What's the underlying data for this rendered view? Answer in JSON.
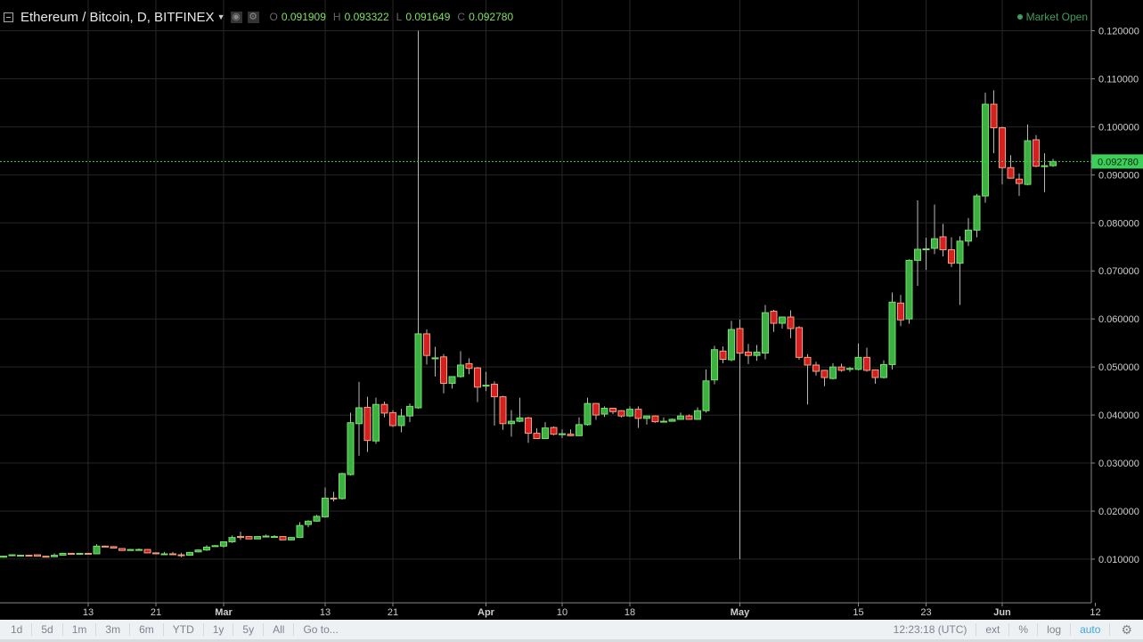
{
  "header": {
    "symbol": "Ethereum / Bitcoin, D, BITFINEX",
    "ohlc": [
      {
        "k": "O",
        "v": "0.091909"
      },
      {
        "k": "H",
        "v": "0.093322"
      },
      {
        "k": "L",
        "v": "0.091649"
      },
      {
        "k": "C",
        "v": "0.092780"
      }
    ],
    "market_status": "Market Open"
  },
  "toolbar": {
    "ranges": [
      "1d",
      "5d",
      "1m",
      "3m",
      "6m",
      "YTD",
      "1y",
      "5y",
      "All"
    ],
    "goto": "Go to...",
    "time": "12:23:18 (UTC)",
    "ext": "ext",
    "percent": "%",
    "log": "log",
    "auto": "auto"
  },
  "colors": {
    "background": "#000000",
    "up": "#3cb043",
    "up_border": "#74e067",
    "down": "#d42020",
    "down_border": "#f5a07a",
    "wick": "#b8b8b8",
    "grid": "#262626",
    "last_price": "#3cd05a"
  },
  "chart_data": {
    "type": "candlestick",
    "interval": "D",
    "last_price": "0.092780",
    "ylim": [
      0.0009,
      0.1264
    ],
    "grid": true,
    "y_ticks": [
      "0.010000",
      "0.020000",
      "0.030000",
      "0.040000",
      "0.050000",
      "0.060000",
      "0.070000",
      "0.080000",
      "0.090000",
      "0.100000",
      "0.110000",
      "0.120000"
    ],
    "x_ticks": [
      {
        "label": "13",
        "date": "Feb 13",
        "major": false
      },
      {
        "label": "21",
        "date": "Feb 21",
        "major": false
      },
      {
        "label": "Mar",
        "date": "Mar 1",
        "major": true
      },
      {
        "label": "13",
        "date": "Mar 13",
        "major": false
      },
      {
        "label": "21",
        "date": "Mar 21",
        "major": false
      },
      {
        "label": "Apr",
        "date": "Apr 1",
        "major": true
      },
      {
        "label": "10",
        "date": "Apr 10",
        "major": false
      },
      {
        "label": "18",
        "date": "Apr 18",
        "major": false
      },
      {
        "label": "May",
        "date": "May 1",
        "major": true
      },
      {
        "label": "15",
        "date": "May 15",
        "major": false
      },
      {
        "label": "23",
        "date": "May 23",
        "major": false
      },
      {
        "label": "Jun",
        "date": "Jun 1",
        "major": true
      },
      {
        "label": "12",
        "date": "Jun 12",
        "major": false
      }
    ],
    "columns": [
      "date",
      "open",
      "high",
      "low",
      "close"
    ],
    "candles": [
      [
        "Feb 3",
        0.0104,
        0.0107,
        0.0103,
        0.0106
      ],
      [
        "Feb 4",
        0.0107,
        0.011,
        0.0106,
        0.0109
      ],
      [
        "Feb 5",
        0.0108,
        0.0109,
        0.0107,
        0.0108
      ],
      [
        "Feb 6",
        0.0108,
        0.0109,
        0.0107,
        0.0107
      ],
      [
        "Feb 7",
        0.0109,
        0.0109,
        0.0106,
        0.0106
      ],
      [
        "Feb 8",
        0.0106,
        0.0106,
        0.0104,
        0.0104
      ],
      [
        "Feb 9",
        0.0105,
        0.0112,
        0.0105,
        0.0108
      ],
      [
        "Feb 10",
        0.0108,
        0.0113,
        0.0108,
        0.0112
      ],
      [
        "Feb 11",
        0.0112,
        0.0113,
        0.011,
        0.011
      ],
      [
        "Feb 12",
        0.011,
        0.0112,
        0.011,
        0.0112
      ],
      [
        "Feb 13",
        0.0112,
        0.0113,
        0.0111,
        0.0111
      ],
      [
        "Feb 14",
        0.0111,
        0.0131,
        0.0111,
        0.0127
      ],
      [
        "Feb 15",
        0.0127,
        0.0128,
        0.0125,
        0.0126
      ],
      [
        "Feb 16",
        0.0126,
        0.0127,
        0.0122,
        0.0123
      ],
      [
        "Feb 17",
        0.0122,
        0.0122,
        0.0118,
        0.0118
      ],
      [
        "Feb 18",
        0.0118,
        0.0121,
        0.0118,
        0.012
      ],
      [
        "Feb 19",
        0.012,
        0.0122,
        0.0119,
        0.012
      ],
      [
        "Feb 20",
        0.012,
        0.0121,
        0.0112,
        0.0113
      ],
      [
        "Feb 21",
        0.0113,
        0.0114,
        0.011,
        0.0111
      ],
      [
        "Feb 22",
        0.0111,
        0.0115,
        0.011,
        0.0111
      ],
      [
        "Feb 23",
        0.0111,
        0.0115,
        0.011,
        0.011
      ],
      [
        "Feb 24",
        0.0109,
        0.0113,
        0.0104,
        0.0108
      ],
      [
        "Feb 25",
        0.0108,
        0.0115,
        0.0108,
        0.0114
      ],
      [
        "Feb 26",
        0.0115,
        0.012,
        0.0115,
        0.0119
      ],
      [
        "Feb 27",
        0.0119,
        0.0129,
        0.0117,
        0.0125
      ],
      [
        "Feb 28",
        0.0126,
        0.0129,
        0.0126,
        0.0128
      ],
      [
        "Mar 1",
        0.0127,
        0.0136,
        0.0124,
        0.0136
      ],
      [
        "Mar 2",
        0.0136,
        0.0149,
        0.0134,
        0.0145
      ],
      [
        "Mar 3",
        0.0147,
        0.0157,
        0.014,
        0.0145
      ],
      [
        "Mar 4",
        0.0147,
        0.0147,
        0.0142,
        0.0142
      ],
      [
        "Mar 5",
        0.0142,
        0.0148,
        0.0142,
        0.0147
      ],
      [
        "Mar 6",
        0.0146,
        0.0151,
        0.0146,
        0.0148
      ],
      [
        "Mar 7",
        0.0147,
        0.015,
        0.0145,
        0.0147
      ],
      [
        "Mar 8",
        0.0147,
        0.0148,
        0.014,
        0.014
      ],
      [
        "Mar 9",
        0.014,
        0.0146,
        0.0139,
        0.0145
      ],
      [
        "Mar 10",
        0.0145,
        0.0177,
        0.0144,
        0.017
      ],
      [
        "Mar 11",
        0.0172,
        0.0181,
        0.0166,
        0.0179
      ],
      [
        "Mar 12",
        0.0179,
        0.0192,
        0.0178,
        0.0189
      ],
      [
        "Mar 13",
        0.0188,
        0.0249,
        0.0186,
        0.0227
      ],
      [
        "Mar 14",
        0.0227,
        0.024,
        0.022,
        0.0226
      ],
      [
        "Mar 15",
        0.0226,
        0.028,
        0.0224,
        0.0278
      ],
      [
        "Mar 16",
        0.0276,
        0.0405,
        0.0274,
        0.0384
      ],
      [
        "Mar 17",
        0.0382,
        0.0469,
        0.0315,
        0.0415
      ],
      [
        "Mar 18",
        0.0416,
        0.0438,
        0.0323,
        0.0347
      ],
      [
        "Mar 19",
        0.0346,
        0.0436,
        0.034,
        0.0422
      ],
      [
        "Mar 20",
        0.0422,
        0.0428,
        0.0395,
        0.0404
      ],
      [
        "Mar 21",
        0.0405,
        0.041,
        0.0375,
        0.0378
      ],
      [
        "Mar 22",
        0.0378,
        0.0413,
        0.0364,
        0.0398
      ],
      [
        "Mar 23",
        0.0398,
        0.0424,
        0.0385,
        0.0418
      ],
      [
        "Mar 24",
        0.0415,
        0.12,
        0.0413,
        0.0569
      ],
      [
        "Mar 25",
        0.0569,
        0.0578,
        0.0505,
        0.0524
      ],
      [
        "Mar 26",
        0.0517,
        0.0542,
        0.048,
        0.0519
      ],
      [
        "Mar 27",
        0.0521,
        0.0527,
        0.0445,
        0.0466
      ],
      [
        "Mar 28",
        0.0466,
        0.048,
        0.0455,
        0.048
      ],
      [
        "Mar 29",
        0.048,
        0.0533,
        0.0478,
        0.0504
      ],
      [
        "Mar 30",
        0.0507,
        0.0518,
        0.0485,
        0.0497
      ],
      [
        "Mar 31",
        0.0498,
        0.05,
        0.0427,
        0.0458
      ],
      [
        "Apr 1",
        0.0461,
        0.049,
        0.045,
        0.0462
      ],
      [
        "Apr 2",
        0.0464,
        0.047,
        0.0378,
        0.0438
      ],
      [
        "Apr 3",
        0.0438,
        0.044,
        0.0369,
        0.0382
      ],
      [
        "Apr 4",
        0.0382,
        0.041,
        0.0355,
        0.0387
      ],
      [
        "Apr 5",
        0.0387,
        0.0436,
        0.0385,
        0.0394
      ],
      [
        "Apr 6",
        0.0394,
        0.0396,
        0.0342,
        0.0362
      ],
      [
        "Apr 7",
        0.0362,
        0.0372,
        0.035,
        0.0351
      ],
      [
        "Apr 8",
        0.0351,
        0.0385,
        0.035,
        0.0373
      ],
      [
        "Apr 9",
        0.0374,
        0.0376,
        0.0358,
        0.036
      ],
      [
        "Apr 10",
        0.036,
        0.037,
        0.0352,
        0.0361
      ],
      [
        "Apr 11",
        0.036,
        0.037,
        0.0356,
        0.0357
      ],
      [
        "Apr 12",
        0.0357,
        0.0395,
        0.0356,
        0.038
      ],
      [
        "Apr 13",
        0.038,
        0.0436,
        0.0378,
        0.0424
      ],
      [
        "Apr 14",
        0.0424,
        0.0425,
        0.039,
        0.04
      ],
      [
        "Apr 15",
        0.0402,
        0.0418,
        0.0396,
        0.0414
      ],
      [
        "Apr 16",
        0.0414,
        0.0415,
        0.0402,
        0.0407
      ],
      [
        "Apr 17",
        0.0409,
        0.041,
        0.0395,
        0.0398
      ],
      [
        "Apr 18",
        0.0398,
        0.0418,
        0.0396,
        0.0412
      ],
      [
        "Apr 19",
        0.0412,
        0.0418,
        0.0373,
        0.0393
      ],
      [
        "Apr 20",
        0.0393,
        0.0399,
        0.038,
        0.0398
      ],
      [
        "Apr 21",
        0.0398,
        0.0399,
        0.0384,
        0.0386
      ],
      [
        "Apr 22",
        0.0386,
        0.0395,
        0.0385,
        0.0387
      ],
      [
        "Apr 23",
        0.0387,
        0.0393,
        0.0386,
        0.0391
      ],
      [
        "Apr 24",
        0.0391,
        0.0405,
        0.039,
        0.0398
      ],
      [
        "Apr 25",
        0.0398,
        0.0401,
        0.039,
        0.0391
      ],
      [
        "Apr 26",
        0.0391,
        0.0416,
        0.039,
        0.0409
      ],
      [
        "Apr 27",
        0.0409,
        0.0495,
        0.0405,
        0.0471
      ],
      [
        "Apr 28",
        0.0473,
        0.0544,
        0.0464,
        0.0536
      ],
      [
        "Apr 29",
        0.0533,
        0.0543,
        0.0508,
        0.0516
      ],
      [
        "Apr 30",
        0.0515,
        0.0596,
        0.0512,
        0.0578
      ],
      [
        "May 1",
        0.058,
        0.0599,
        0.01,
        0.0529
      ],
      [
        "May 2",
        0.0531,
        0.0548,
        0.0506,
        0.0524
      ],
      [
        "May 3",
        0.0524,
        0.0546,
        0.0513,
        0.0531
      ],
      [
        "May 4",
        0.0529,
        0.0629,
        0.0516,
        0.0613
      ],
      [
        "May 5",
        0.0616,
        0.0619,
        0.0573,
        0.0591
      ],
      [
        "May 6",
        0.0591,
        0.0605,
        0.058,
        0.0604
      ],
      [
        "May 7",
        0.0604,
        0.0618,
        0.056,
        0.058
      ],
      [
        "May 8",
        0.0582,
        0.0585,
        0.0515,
        0.052
      ],
      [
        "May 9",
        0.052,
        0.0527,
        0.0422,
        0.0504
      ],
      [
        "May 10",
        0.0504,
        0.0511,
        0.0482,
        0.0491
      ],
      [
        "May 11",
        0.0493,
        0.0494,
        0.046,
        0.0478
      ],
      [
        "May 12",
        0.0476,
        0.0508,
        0.0474,
        0.05
      ],
      [
        "May 13",
        0.05,
        0.0507,
        0.049,
        0.0493
      ],
      [
        "May 14",
        0.0495,
        0.05,
        0.049,
        0.0497
      ],
      [
        "May 15",
        0.0495,
        0.0549,
        0.0493,
        0.052
      ],
      [
        "May 16",
        0.052,
        0.054,
        0.049,
        0.0493
      ],
      [
        "May 17",
        0.0494,
        0.0495,
        0.0465,
        0.0478
      ],
      [
        "May 18",
        0.0478,
        0.0514,
        0.0476,
        0.0505
      ],
      [
        "May 19",
        0.0505,
        0.0655,
        0.0495,
        0.0635
      ],
      [
        "May 20",
        0.0633,
        0.065,
        0.0585,
        0.0598
      ],
      [
        "May 21",
        0.06,
        0.0724,
        0.059,
        0.0722
      ],
      [
        "May 22",
        0.0722,
        0.0847,
        0.0669,
        0.0745
      ],
      [
        "May 23",
        0.0744,
        0.0769,
        0.0702,
        0.0746
      ],
      [
        "May 24",
        0.0747,
        0.0838,
        0.0735,
        0.0767
      ],
      [
        "May 25",
        0.0771,
        0.0798,
        0.073,
        0.0744
      ],
      [
        "May 26",
        0.0744,
        0.077,
        0.0708,
        0.0716
      ],
      [
        "May 27",
        0.0716,
        0.0772,
        0.0629,
        0.0762
      ],
      [
        "May 28",
        0.0762,
        0.081,
        0.0752,
        0.0785
      ],
      [
        "May 29",
        0.0785,
        0.086,
        0.077,
        0.0856
      ],
      [
        "May 30",
        0.0856,
        0.1071,
        0.0842,
        0.1047
      ],
      [
        "May 31",
        0.1047,
        0.1076,
        0.0945,
        0.0998
      ],
      [
        "Jun 1",
        0.0998,
        0.1,
        0.088,
        0.0915
      ],
      [
        "Jun 2",
        0.0915,
        0.0941,
        0.0892,
        0.0893
      ],
      [
        "Jun 3",
        0.0891,
        0.0903,
        0.0856,
        0.0882
      ],
      [
        "Jun 4",
        0.088,
        0.1005,
        0.0878,
        0.0971
      ],
      [
        "Jun 5",
        0.0973,
        0.0983,
        0.0916,
        0.0918
      ],
      [
        "Jun 6",
        0.0918,
        0.0945,
        0.0864,
        0.0919
      ],
      [
        "Jun 7",
        0.091909,
        0.093322,
        0.091649,
        0.09278
      ]
    ]
  }
}
